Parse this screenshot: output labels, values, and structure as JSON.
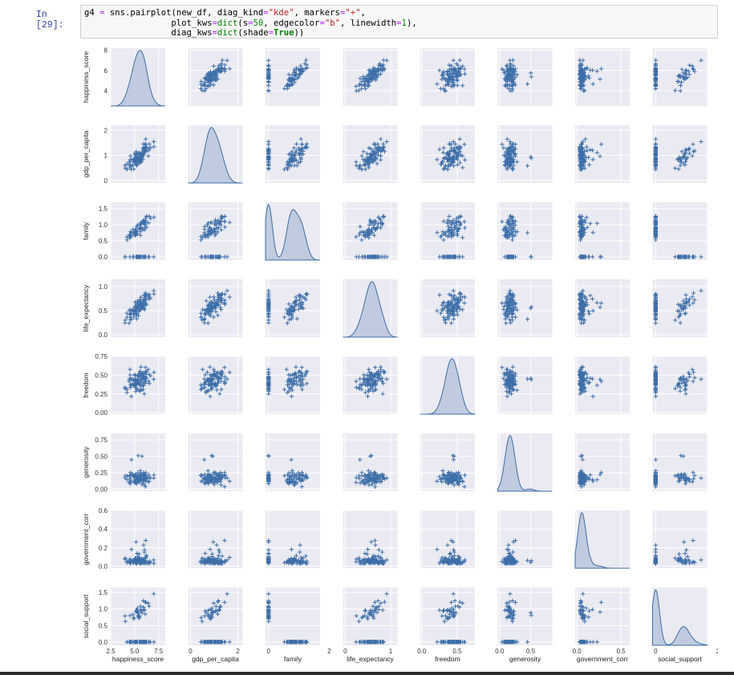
{
  "cell": {
    "prompt": "In [29]:",
    "code_lines": [
      [
        [
          "var",
          "g4 "
        ],
        [
          "op",
          "="
        ],
        [
          "var",
          " sns.pairplot(new_df, diag_kind"
        ],
        [
          "op",
          "="
        ],
        [
          "str",
          "\"kde\""
        ],
        [
          "var",
          ", markers"
        ],
        [
          "op",
          "="
        ],
        [
          "str",
          "\"+\""
        ],
        [
          "var",
          ","
        ]
      ],
      [
        [
          "var",
          "                 plot_kws"
        ],
        [
          "op",
          "="
        ],
        [
          "bi",
          "dict"
        ],
        [
          "var",
          "(s"
        ],
        [
          "op",
          "="
        ],
        [
          "num",
          "50"
        ],
        [
          "var",
          ", edgecolor"
        ],
        [
          "op",
          "="
        ],
        [
          "str",
          "\"b\""
        ],
        [
          "var",
          ", linewidth"
        ],
        [
          "op",
          "="
        ],
        [
          "num",
          "1"
        ],
        [
          "var",
          "),"
        ]
      ],
      [
        [
          "var",
          "                 diag_kws"
        ],
        [
          "op",
          "="
        ],
        [
          "bi",
          "dict"
        ],
        [
          "var",
          "(shade"
        ],
        [
          "op",
          "="
        ],
        [
          "kw",
          "True"
        ],
        [
          "var",
          "))"
        ]
      ]
    ]
  },
  "chart_data": {
    "type": "scatter",
    "subtype": "pairplot",
    "marker": "+",
    "diag_kind": "kde",
    "colors": {
      "marker": "#3d6ea8",
      "panel_bg": "#eaeaf2",
      "grid": "#ffffff",
      "kde_fill": "#b9c6dc",
      "kde_line": "#3d6ea8"
    },
    "variables": [
      {
        "name": "happiness_score",
        "range": [
          2.5,
          8.2
        ],
        "y_ticks": [
          "4",
          "6",
          "8"
        ],
        "x_ticks": [
          "2.5",
          "5.0",
          "7.5"
        ]
      },
      {
        "name": "gdp_per_capita",
        "range": [
          -0.1,
          2.2
        ],
        "y_ticks": [
          "0",
          "1",
          "2"
        ],
        "x_ticks": [
          "0",
          "2"
        ]
      },
      {
        "name": "family",
        "range": [
          -0.1,
          1.7
        ],
        "y_ticks": [
          "0.0",
          "0.5",
          "1.0",
          "1.5"
        ],
        "x_ticks": [
          "0",
          "2"
        ]
      },
      {
        "name": "life_expectancy",
        "range": [
          -0.05,
          1.15
        ],
        "y_ticks": [
          "0.0",
          "0.5",
          "1.0"
        ],
        "x_ticks": [
          "0",
          "1"
        ]
      },
      {
        "name": "freedom",
        "range": [
          -0.02,
          0.75
        ],
        "y_ticks": [
          "0.00",
          "0.25",
          "0.50",
          "0.75"
        ],
        "x_ticks": [
          "0.0",
          "0.5"
        ]
      },
      {
        "name": "generosity",
        "range": [
          -0.03,
          0.85
        ],
        "y_ticks": [
          "0.00",
          "0.25",
          "0.50",
          "0.75"
        ],
        "x_ticks": [
          "0.0",
          "0.5"
        ]
      },
      {
        "name": "government_corr",
        "range": [
          -0.02,
          0.6
        ],
        "y_ticks": [
          "0.0",
          "0.2",
          "0.4",
          "0.6"
        ],
        "x_ticks": [
          "0.0",
          "0.5"
        ]
      },
      {
        "name": "social_support",
        "range": [
          -0.1,
          1.65
        ],
        "y_ticks": [
          "0.0",
          "0.5",
          "1.0",
          "1.5"
        ],
        "x_ticks": [
          "0",
          "2"
        ]
      }
    ]
  }
}
